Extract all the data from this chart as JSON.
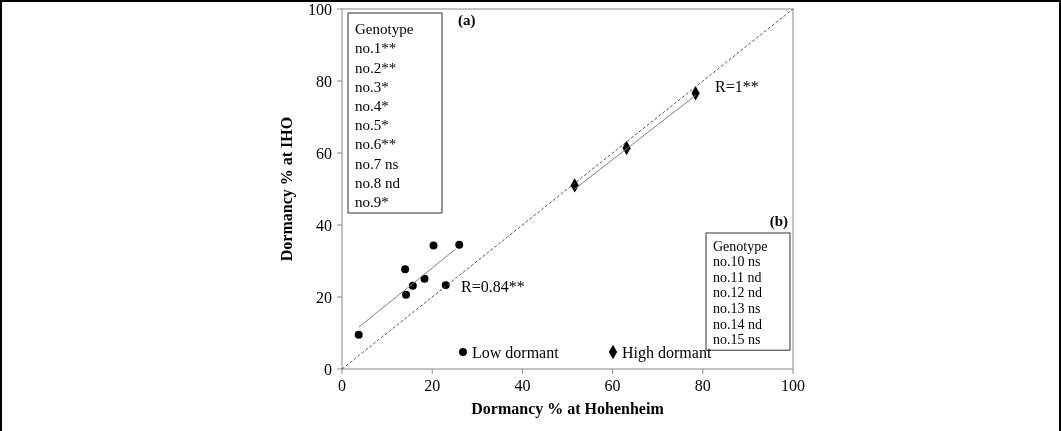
{
  "chart_data": {
    "type": "scatter",
    "xlabel": "Dormancy  % at Hohenheim",
    "ylabel": "Dormancy  % at IHO",
    "xlim": [
      0,
      100
    ],
    "xticks": [
      0,
      20,
      40,
      60,
      80,
      100
    ],
    "ylim": [
      0,
      100
    ],
    "yticks": [
      0,
      20,
      40,
      60,
      80,
      100
    ],
    "grid": false,
    "legend": "bottom",
    "series": [
      {
        "name": "Low dormant",
        "marker": "circle",
        "color": "#000000",
        "x": [
          3.7,
          14.0,
          14.2,
          15.7,
          18.3,
          20.3,
          23.0,
          26.0
        ],
        "values": [
          9.5,
          27.7,
          20.6,
          23.1,
          25.1,
          34.3,
          23.3,
          34.5
        ]
      },
      {
        "name": "High dormant",
        "marker": "diamond",
        "color": "#000000",
        "x": [
          51.6,
          63.1,
          78.4
        ],
        "values": [
          51.0,
          61.4,
          76.6
        ]
      },
      {
        "type": "line",
        "line_style": "solid",
        "color": "#808080",
        "x": [
          3.7,
          25.2
        ],
        "values": [
          11.6,
          33.3
        ]
      },
      {
        "type": "line",
        "line_style": "solid",
        "color": "#808080",
        "x": [
          51.6,
          78.4
        ],
        "values": [
          50.0,
          76.0
        ]
      },
      {
        "type": "line",
        "line_style": "dashed",
        "color": "#555555",
        "x": [
          0,
          100
        ],
        "values": [
          0,
          100
        ]
      }
    ],
    "annotations": [
      "Genotype\nno.1**\nno.2**\nno.3*\nno.4*\nno.5*\nno.6**\nno.7 ns\nno.8 nd\nno.9*",
      "(a)",
      "(b)",
      "Genotype\nno.10 ns\nno.11 nd\nno.12 nd\nno.13 ns\nno.14 nd\nno.15 ns",
      "R=0.84**",
      "R=1**"
    ]
  }
}
